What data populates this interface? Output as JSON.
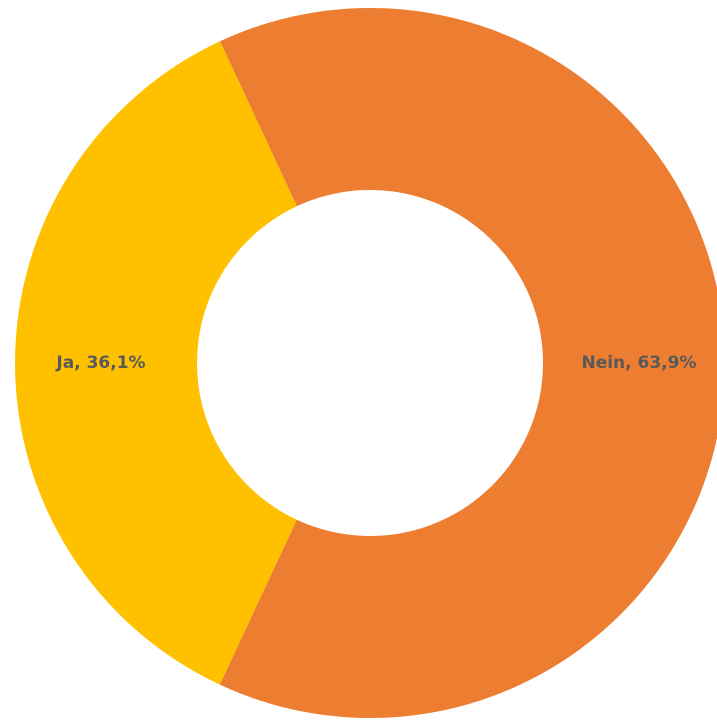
{
  "chart_data": {
    "type": "donut",
    "values": [
      63.9,
      36.1
    ],
    "value_labels": [
      "Nein, 63,9%",
      "Ja, 36,1%"
    ],
    "colors": [
      "#ED7D31",
      "#FFC000"
    ]
  }
}
